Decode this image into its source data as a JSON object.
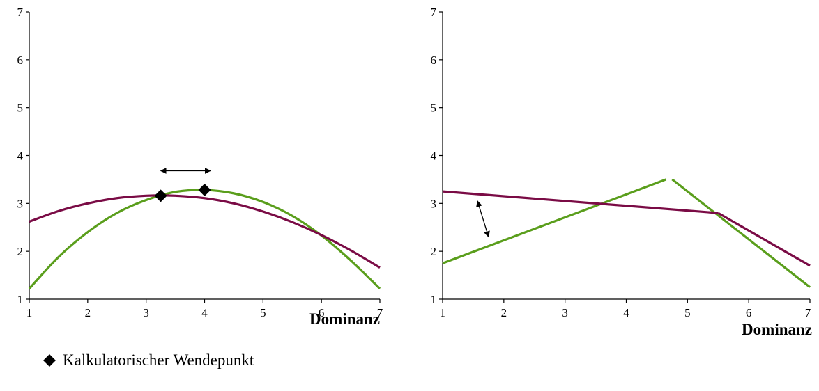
{
  "colors": {
    "green": "#5a9e1c",
    "maroon": "#7a0b45",
    "axis": "#000000",
    "marker": "#000000"
  },
  "legend": {
    "label": "Kalkulatorischer Wendepunkt",
    "icon": "diamond-icon"
  },
  "chart_data": [
    {
      "type": "line",
      "title": "",
      "xlabel": "Dominanz",
      "ylabel": "",
      "xlim": [
        1,
        7
      ],
      "ylim": [
        1,
        7
      ],
      "xticks": [
        1,
        2,
        3,
        4,
        5,
        6,
        7
      ],
      "yticks": [
        1,
        2,
        3,
        4,
        5,
        6,
        7
      ],
      "grid": false,
      "series": [
        {
          "color": "green",
          "x": [
            1.0,
            1.5,
            2.0,
            2.5,
            3.0,
            3.5,
            4.0,
            4.5,
            5.0,
            5.5,
            6.0,
            6.5,
            7.0
          ],
          "y": [
            1.22,
            1.88,
            2.4,
            2.8,
            3.07,
            3.24,
            3.28,
            3.21,
            3.03,
            2.74,
            2.33,
            1.81,
            1.22
          ]
        },
        {
          "color": "maroon",
          "x": [
            1.0,
            1.5,
            2.0,
            2.5,
            3.0,
            3.5,
            4.0,
            4.5,
            5.0,
            5.5,
            6.0,
            6.5,
            7.0
          ],
          "y": [
            2.62,
            2.84,
            3.0,
            3.11,
            3.16,
            3.16,
            3.11,
            3.0,
            2.83,
            2.61,
            2.34,
            2.02,
            1.66
          ]
        }
      ],
      "markers": [
        {
          "x": 3.25,
          "y": 3.16
        },
        {
          "x": 4.0,
          "y": 3.28
        }
      ],
      "annotations": [
        {
          "type": "double-arrow",
          "from": [
            3.25,
            3.68
          ],
          "to": [
            4.1,
            3.68
          ]
        }
      ]
    },
    {
      "type": "line",
      "title": "",
      "xlabel": "Dominanz",
      "ylabel": "",
      "xlim": [
        1,
        7
      ],
      "ylim": [
        1,
        7
      ],
      "xticks": [
        1,
        2,
        3,
        4,
        5,
        6,
        7
      ],
      "yticks": [
        1,
        2,
        3,
        4,
        5,
        6,
        7
      ],
      "grid": false,
      "series": [
        {
          "color": "green",
          "x": [
            1.0,
            4.65
          ],
          "y": [
            1.75,
            3.5
          ]
        },
        {
          "color": "green",
          "x": [
            4.75,
            7.0
          ],
          "y": [
            3.5,
            1.25
          ]
        },
        {
          "color": "maroon",
          "x": [
            1.0,
            5.5
          ],
          "y": [
            3.25,
            2.8
          ]
        },
        {
          "color": "maroon",
          "x": [
            5.5,
            7.0
          ],
          "y": [
            2.8,
            1.7
          ]
        }
      ],
      "markers": [],
      "annotations": [
        {
          "type": "double-arrow",
          "from": [
            1.57,
            3.05
          ],
          "to": [
            1.75,
            2.3
          ]
        }
      ]
    }
  ]
}
